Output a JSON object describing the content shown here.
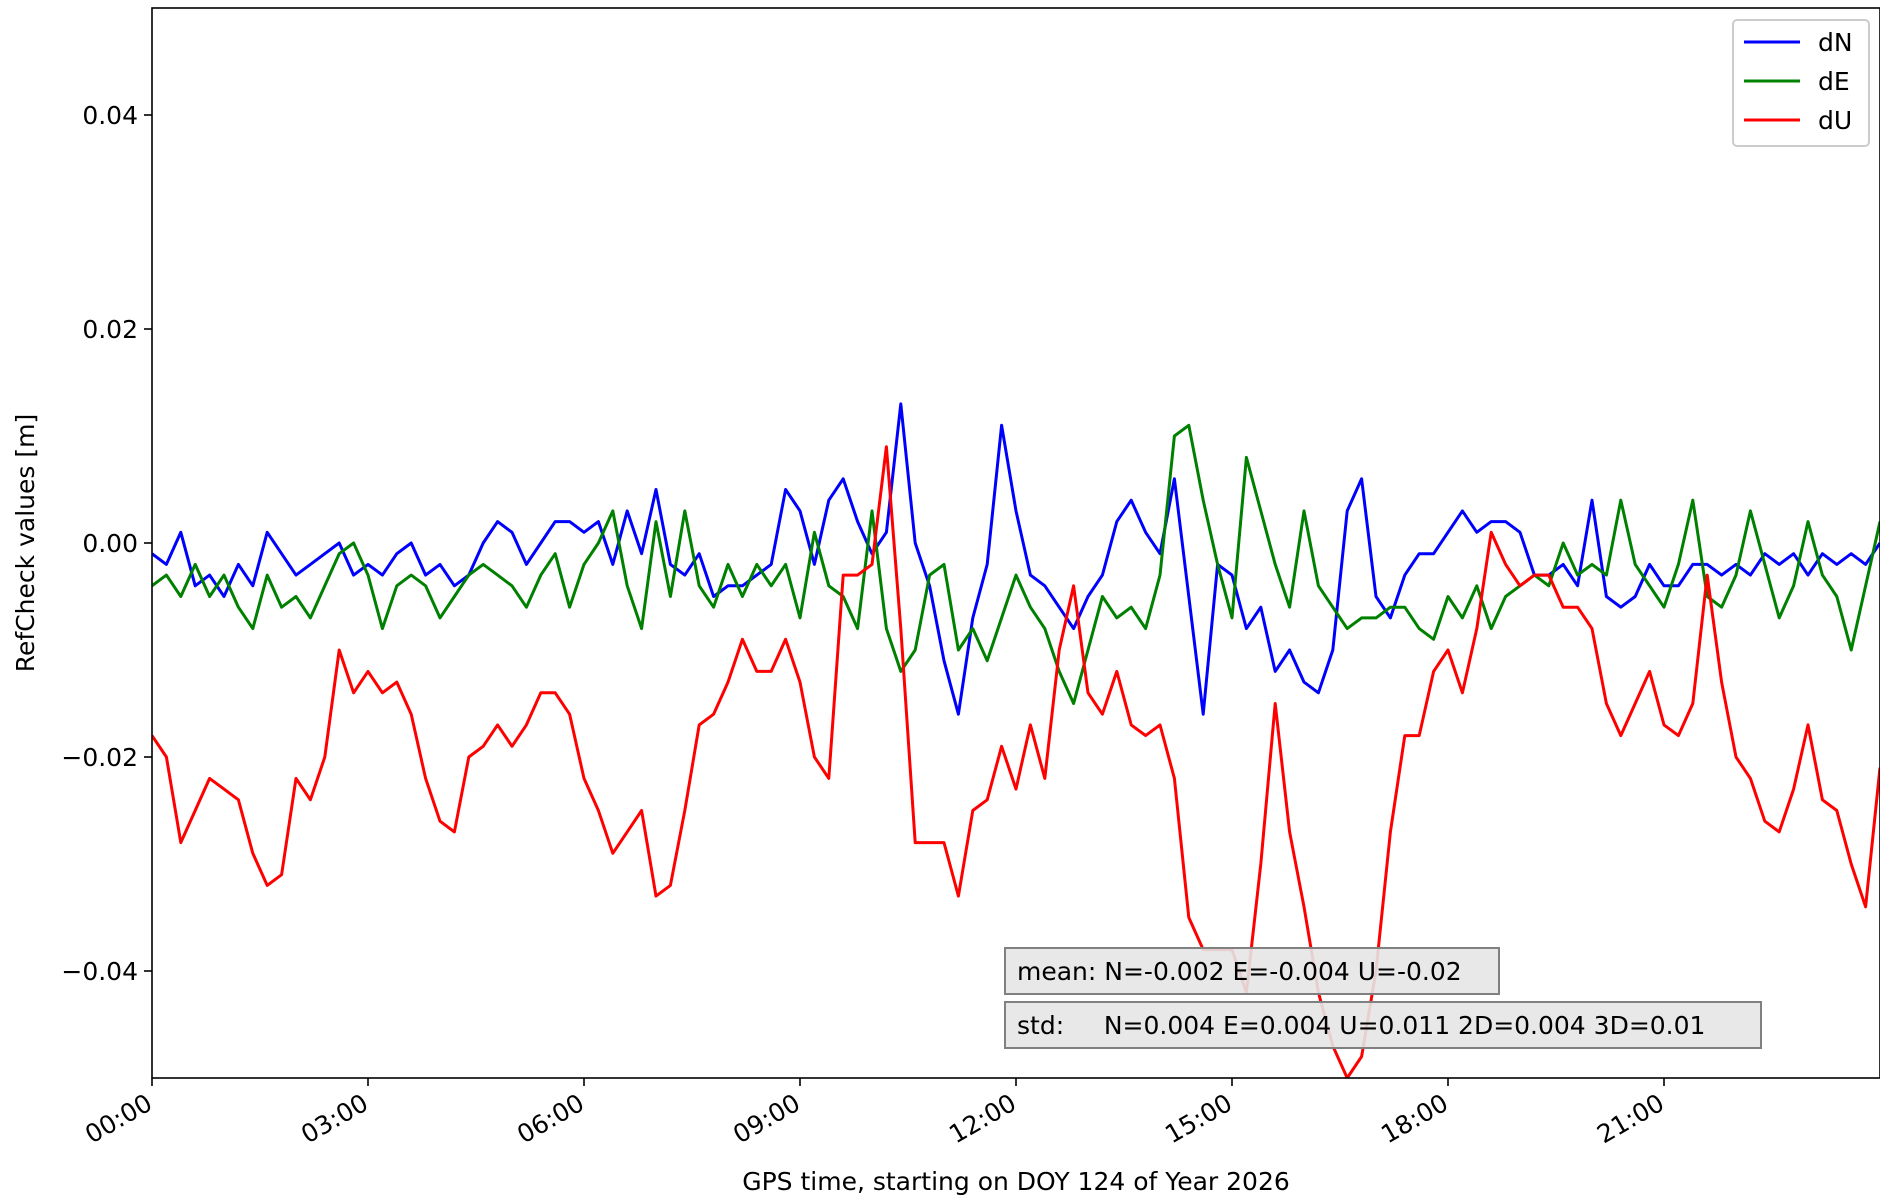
{
  "chart_data": {
    "type": "line",
    "xlabel": "GPS time, starting on DOY 124 of Year 2026",
    "ylabel": "RefCheck values [m]",
    "xlim": [
      0,
      24
    ],
    "ylim": [
      -0.05,
      0.05
    ],
    "x_ticks": [
      {
        "value": 0,
        "label": "00:00"
      },
      {
        "value": 3,
        "label": "03:00"
      },
      {
        "value": 6,
        "label": "06:00"
      },
      {
        "value": 9,
        "label": "09:00"
      },
      {
        "value": 12,
        "label": "12:00"
      },
      {
        "value": 15,
        "label": "15:00"
      },
      {
        "value": 18,
        "label": "18:00"
      },
      {
        "value": 21,
        "label": "21:00"
      }
    ],
    "y_ticks": [
      {
        "value": 0.04,
        "label": "0.04"
      },
      {
        "value": 0.02,
        "label": "0.02"
      },
      {
        "value": 0.0,
        "label": "0.00"
      },
      {
        "value": -0.02,
        "label": "−0.02"
      },
      {
        "value": -0.04,
        "label": "−0.04"
      }
    ],
    "grid": false,
    "legend_position": "top-right",
    "annotations": [
      "mean: N=-0.002 E=-0.004 U=-0.02",
      "std:     N=0.004 E=0.004 U=0.011 2D=0.004 3D=0.01"
    ],
    "series": [
      {
        "name": "dN",
        "color": "#0000ff",
        "x": [
          0,
          0.2,
          0.4,
          0.6,
          0.8,
          1.0,
          1.2,
          1.4,
          1.6,
          1.8,
          2.0,
          2.2,
          2.4,
          2.6,
          2.8,
          3.0,
          3.2,
          3.4,
          3.6,
          3.8,
          4.0,
          4.2,
          4.4,
          4.6,
          4.8,
          5.0,
          5.2,
          5.4,
          5.6,
          5.8,
          6.0,
          6.2,
          6.4,
          6.6,
          6.8,
          7.0,
          7.2,
          7.4,
          7.6,
          7.8,
          8.0,
          8.2,
          8.4,
          8.6,
          8.8,
          9.0,
          9.2,
          9.4,
          9.6,
          9.8,
          10.0,
          10.2,
          10.4,
          10.6,
          10.8,
          11.0,
          11.2,
          11.4,
          11.6,
          11.8,
          12.0,
          12.2,
          12.4,
          12.6,
          12.8,
          13.0,
          13.2,
          13.4,
          13.6,
          13.8,
          14.0,
          14.2,
          14.4,
          14.6,
          14.8,
          15.0,
          15.2,
          15.4,
          15.6,
          15.8,
          16.0,
          16.2,
          16.4,
          16.6,
          16.8,
          17.0,
          17.2,
          17.4,
          17.6,
          17.8,
          18.0,
          18.2,
          18.4,
          18.6,
          18.8,
          19.0,
          19.2,
          19.4,
          19.6,
          19.8,
          20.0,
          20.2,
          20.4,
          20.6,
          20.8,
          21.0,
          21.2,
          21.4,
          21.6,
          21.8,
          22.0,
          22.2,
          22.4,
          22.6,
          22.8,
          23.0,
          23.2,
          23.4,
          23.6,
          23.8,
          24.0
        ],
        "y": [
          -0.001,
          -0.002,
          0.001,
          -0.004,
          -0.003,
          -0.005,
          -0.002,
          -0.004,
          0.001,
          -0.001,
          -0.003,
          -0.002,
          -0.001,
          0.0,
          -0.003,
          -0.002,
          -0.003,
          -0.001,
          0.0,
          -0.003,
          -0.002,
          -0.004,
          -0.003,
          0.0,
          0.002,
          0.001,
          -0.002,
          0.0,
          0.002,
          0.002,
          0.001,
          0.002,
          -0.002,
          0.003,
          -0.001,
          0.005,
          -0.002,
          -0.003,
          -0.001,
          -0.005,
          -0.004,
          -0.004,
          -0.003,
          -0.002,
          0.005,
          0.003,
          -0.002,
          0.004,
          0.006,
          0.002,
          -0.001,
          0.001,
          0.013,
          0.0,
          -0.004,
          -0.011,
          -0.016,
          -0.007,
          -0.002,
          0.011,
          0.003,
          -0.003,
          -0.004,
          -0.006,
          -0.008,
          -0.005,
          -0.003,
          0.002,
          0.004,
          0.001,
          -0.001,
          0.006,
          -0.005,
          -0.016,
          -0.002,
          -0.003,
          -0.008,
          -0.006,
          -0.012,
          -0.01,
          -0.013,
          -0.014,
          -0.01,
          0.003,
          0.006,
          -0.005,
          -0.007,
          -0.003,
          -0.001,
          -0.001,
          0.001,
          0.003,
          0.001,
          0.002,
          0.002,
          0.001,
          -0.003,
          -0.003,
          -0.002,
          -0.004,
          0.004,
          -0.005,
          -0.006,
          -0.005,
          -0.002,
          -0.004,
          -0.004,
          -0.002,
          -0.002,
          -0.003,
          -0.002,
          -0.003,
          -0.001,
          -0.002,
          -0.001,
          -0.003,
          -0.001,
          -0.002,
          -0.001,
          -0.002,
          0.0
        ]
      },
      {
        "name": "dE",
        "color": "#008000",
        "x": [
          0,
          0.2,
          0.4,
          0.6,
          0.8,
          1.0,
          1.2,
          1.4,
          1.6,
          1.8,
          2.0,
          2.2,
          2.4,
          2.6,
          2.8,
          3.0,
          3.2,
          3.4,
          3.6,
          3.8,
          4.0,
          4.2,
          4.4,
          4.6,
          4.8,
          5.0,
          5.2,
          5.4,
          5.6,
          5.8,
          6.0,
          6.2,
          6.4,
          6.6,
          6.8,
          7.0,
          7.2,
          7.4,
          7.6,
          7.8,
          8.0,
          8.2,
          8.4,
          8.6,
          8.8,
          9.0,
          9.2,
          9.4,
          9.6,
          9.8,
          10.0,
          10.2,
          10.4,
          10.6,
          10.8,
          11.0,
          11.2,
          11.4,
          11.6,
          11.8,
          12.0,
          12.2,
          12.4,
          12.6,
          12.8,
          13.0,
          13.2,
          13.4,
          13.6,
          13.8,
          14.0,
          14.2,
          14.4,
          14.6,
          14.8,
          15.0,
          15.2,
          15.4,
          15.6,
          15.8,
          16.0,
          16.2,
          16.4,
          16.6,
          16.8,
          17.0,
          17.2,
          17.4,
          17.6,
          17.8,
          18.0,
          18.2,
          18.4,
          18.6,
          18.8,
          19.0,
          19.2,
          19.4,
          19.6,
          19.8,
          20.0,
          20.2,
          20.4,
          20.6,
          20.8,
          21.0,
          21.2,
          21.4,
          21.6,
          21.8,
          22.0,
          22.2,
          22.4,
          22.6,
          22.8,
          23.0,
          23.2,
          23.4,
          23.6,
          23.8,
          24.0
        ],
        "y": [
          -0.004,
          -0.003,
          -0.005,
          -0.002,
          -0.005,
          -0.003,
          -0.006,
          -0.008,
          -0.003,
          -0.006,
          -0.005,
          -0.007,
          -0.004,
          -0.001,
          0.0,
          -0.003,
          -0.008,
          -0.004,
          -0.003,
          -0.004,
          -0.007,
          -0.005,
          -0.003,
          -0.002,
          -0.003,
          -0.004,
          -0.006,
          -0.003,
          -0.001,
          -0.006,
          -0.002,
          0.0,
          0.003,
          -0.004,
          -0.008,
          0.002,
          -0.005,
          0.003,
          -0.004,
          -0.006,
          -0.002,
          -0.005,
          -0.002,
          -0.004,
          -0.002,
          -0.007,
          0.001,
          -0.004,
          -0.005,
          -0.008,
          0.003,
          -0.008,
          -0.012,
          -0.01,
          -0.003,
          -0.002,
          -0.01,
          -0.008,
          -0.011,
          -0.007,
          -0.003,
          -0.006,
          -0.008,
          -0.012,
          -0.015,
          -0.01,
          -0.005,
          -0.007,
          -0.006,
          -0.008,
          -0.003,
          0.01,
          0.011,
          0.004,
          -0.002,
          -0.007,
          0.008,
          0.003,
          -0.002,
          -0.006,
          0.003,
          -0.004,
          -0.006,
          -0.008,
          -0.007,
          -0.007,
          -0.006,
          -0.006,
          -0.008,
          -0.009,
          -0.005,
          -0.007,
          -0.004,
          -0.008,
          -0.005,
          -0.004,
          -0.003,
          -0.004,
          0.0,
          -0.003,
          -0.002,
          -0.003,
          0.004,
          -0.002,
          -0.004,
          -0.006,
          -0.002,
          0.004,
          -0.005,
          -0.006,
          -0.003,
          0.003,
          -0.002,
          -0.007,
          -0.004,
          0.002,
          -0.003,
          -0.005,
          -0.01,
          -0.004,
          0.002
        ]
      },
      {
        "name": "dU",
        "color": "#ff0000",
        "x": [
          0,
          0.2,
          0.4,
          0.6,
          0.8,
          1.0,
          1.2,
          1.4,
          1.6,
          1.8,
          2.0,
          2.2,
          2.4,
          2.6,
          2.8,
          3.0,
          3.2,
          3.4,
          3.6,
          3.8,
          4.0,
          4.2,
          4.4,
          4.6,
          4.8,
          5.0,
          5.2,
          5.4,
          5.6,
          5.8,
          6.0,
          6.2,
          6.4,
          6.6,
          6.8,
          7.0,
          7.2,
          7.4,
          7.6,
          7.8,
          8.0,
          8.2,
          8.4,
          8.6,
          8.8,
          9.0,
          9.2,
          9.4,
          9.6,
          9.8,
          10.0,
          10.2,
          10.4,
          10.6,
          10.8,
          11.0,
          11.2,
          11.4,
          11.6,
          11.8,
          12.0,
          12.2,
          12.4,
          12.6,
          12.8,
          13.0,
          13.2,
          13.4,
          13.6,
          13.8,
          14.0,
          14.2,
          14.4,
          14.6,
          14.8,
          15.0,
          15.2,
          15.4,
          15.6,
          15.8,
          16.0,
          16.2,
          16.4,
          16.6,
          16.8,
          17.0,
          17.2,
          17.4,
          17.6,
          17.8,
          18.0,
          18.2,
          18.4,
          18.6,
          18.8,
          19.0,
          19.2,
          19.4,
          19.6,
          19.8,
          20.0,
          20.2,
          20.4,
          20.6,
          20.8,
          21.0,
          21.2,
          21.4,
          21.6,
          21.8,
          22.0,
          22.2,
          22.4,
          22.6,
          22.8,
          23.0,
          23.2,
          23.4,
          23.6,
          23.8,
          24.0
        ],
        "y": [
          -0.018,
          -0.02,
          -0.028,
          -0.025,
          -0.022,
          -0.023,
          -0.024,
          -0.029,
          -0.032,
          -0.031,
          -0.022,
          -0.024,
          -0.02,
          -0.01,
          -0.014,
          -0.012,
          -0.014,
          -0.013,
          -0.016,
          -0.022,
          -0.026,
          -0.027,
          -0.02,
          -0.019,
          -0.017,
          -0.019,
          -0.017,
          -0.014,
          -0.014,
          -0.016,
          -0.022,
          -0.025,
          -0.029,
          -0.027,
          -0.025,
          -0.033,
          -0.032,
          -0.025,
          -0.017,
          -0.016,
          -0.013,
          -0.009,
          -0.012,
          -0.012,
          -0.009,
          -0.013,
          -0.02,
          -0.022,
          -0.003,
          -0.003,
          -0.002,
          0.009,
          -0.008,
          -0.028,
          -0.028,
          -0.028,
          -0.033,
          -0.025,
          -0.024,
          -0.019,
          -0.023,
          -0.017,
          -0.022,
          -0.01,
          -0.004,
          -0.014,
          -0.016,
          -0.012,
          -0.017,
          -0.018,
          -0.017,
          -0.022,
          -0.035,
          -0.038,
          -0.038,
          -0.038,
          -0.042,
          -0.03,
          -0.015,
          -0.027,
          -0.034,
          -0.042,
          -0.047,
          -0.05,
          -0.048,
          -0.04,
          -0.027,
          -0.018,
          -0.018,
          -0.012,
          -0.01,
          -0.014,
          -0.008,
          0.001,
          -0.002,
          -0.004,
          -0.003,
          -0.003,
          -0.006,
          -0.006,
          -0.008,
          -0.015,
          -0.018,
          -0.015,
          -0.012,
          -0.017,
          -0.018,
          -0.015,
          -0.003,
          -0.013,
          -0.02,
          -0.022,
          -0.026,
          -0.027,
          -0.023,
          -0.017,
          -0.024,
          -0.025,
          -0.03,
          -0.034,
          -0.021
        ]
      }
    ]
  }
}
